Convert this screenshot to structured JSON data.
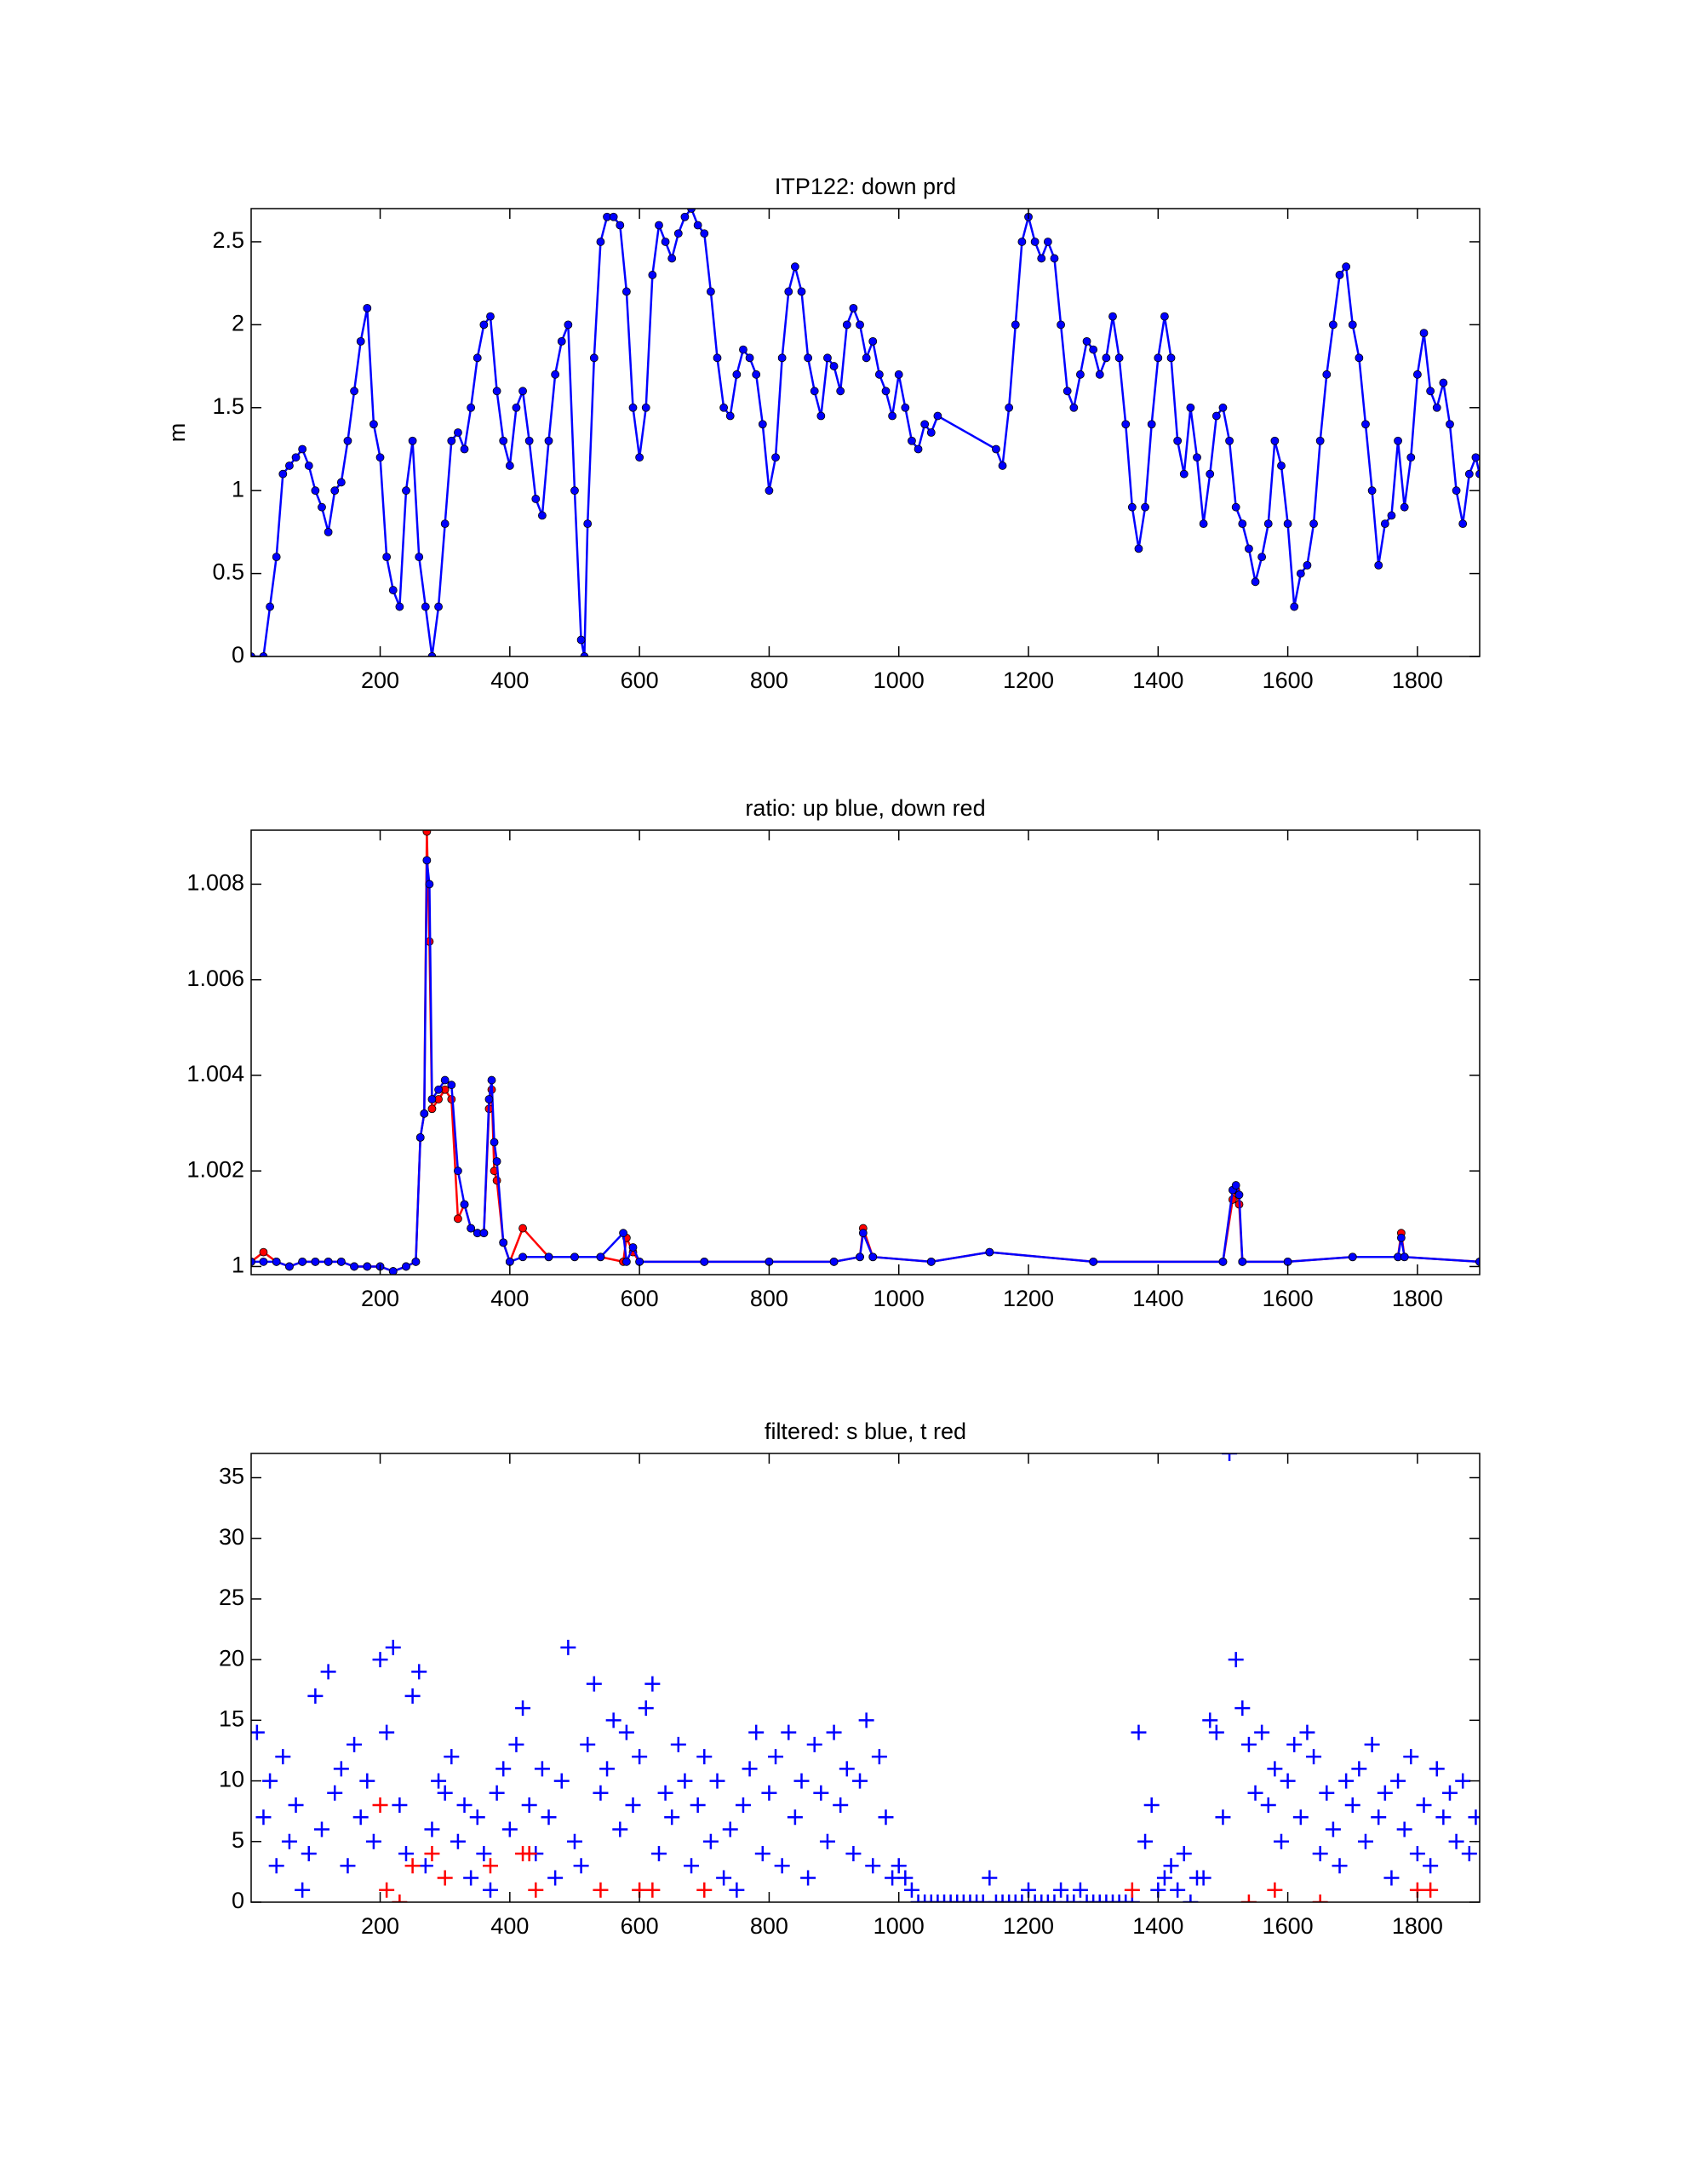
{
  "chart_data": [
    {
      "type": "line",
      "title": "ITP122: down prd",
      "ylabel": "m",
      "xlim": [
        1,
        1896
      ],
      "ylim": [
        0,
        2.7
      ],
      "xticks": [
        200,
        400,
        600,
        800,
        1000,
        1200,
        1400,
        1600,
        1800
      ],
      "yticks": [
        0,
        0.5,
        1,
        1.5,
        2,
        2.5
      ],
      "series": [
        {
          "color": "#0000ff",
          "x": [
            1,
            20,
            30,
            40,
            50,
            60,
            70,
            80,
            90,
            100,
            110,
            120,
            130,
            140,
            150,
            160,
            170,
            180,
            190,
            200,
            210,
            220,
            230,
            240,
            250,
            260,
            270,
            280,
            290,
            300,
            310,
            320,
            330,
            340,
            350,
            360,
            370,
            380,
            390,
            400,
            410,
            420,
            430,
            440,
            450,
            460,
            470,
            480,
            490,
            500,
            510,
            515,
            520,
            530,
            540,
            550,
            560,
            570,
            580,
            590,
            600,
            610,
            620,
            630,
            640,
            650,
            660,
            670,
            680,
            690,
            700,
            710,
            720,
            730,
            740,
            750,
            760,
            770,
            780,
            790,
            800,
            810,
            820,
            830,
            840,
            850,
            860,
            870,
            880,
            890,
            900,
            910,
            920,
            930,
            940,
            950,
            960,
            970,
            980,
            990,
            1000,
            1010,
            1020,
            1030,
            1040,
            1050,
            1060,
            1150,
            1160,
            1170,
            1180,
            1190,
            1200,
            1210,
            1220,
            1230,
            1240,
            1250,
            1260,
            1270,
            1280,
            1290,
            1300,
            1310,
            1320,
            1330,
            1340,
            1350,
            1360,
            1370,
            1380,
            1390,
            1400,
            1410,
            1420,
            1430,
            1440,
            1450,
            1460,
            1470,
            1480,
            1490,
            1500,
            1510,
            1520,
            1530,
            1540,
            1550,
            1560,
            1570,
            1580,
            1590,
            1600,
            1610,
            1620,
            1630,
            1640,
            1650,
            1660,
            1670,
            1680,
            1690,
            1700,
            1710,
            1720,
            1730,
            1740,
            1750,
            1760,
            1770,
            1780,
            1790,
            1800,
            1810,
            1820,
            1830,
            1840,
            1850,
            1860,
            1870,
            1880,
            1890,
            1896
          ],
          "values": [
            0,
            0,
            0.3,
            0.6,
            1.1,
            1.15,
            1.2,
            1.25,
            1.15,
            1.0,
            0.9,
            0.75,
            1.0,
            1.05,
            1.3,
            1.6,
            1.9,
            2.1,
            1.4,
            1.2,
            0.6,
            0.4,
            0.3,
            1.0,
            1.3,
            0.6,
            0.3,
            0.0,
            0.3,
            0.8,
            1.3,
            1.35,
            1.25,
            1.5,
            1.8,
            2.0,
            2.05,
            1.6,
            1.3,
            1.15,
            1.5,
            1.6,
            1.3,
            0.95,
            0.85,
            1.3,
            1.7,
            1.9,
            2.0,
            1.0,
            0.1,
            0.0,
            0.8,
            1.8,
            2.5,
            2.65,
            2.65,
            2.6,
            2.2,
            1.5,
            1.2,
            1.5,
            2.3,
            2.6,
            2.5,
            2.4,
            2.55,
            2.65,
            2.7,
            2.6,
            2.55,
            2.2,
            1.8,
            1.5,
            1.45,
            1.7,
            1.85,
            1.8,
            1.7,
            1.4,
            1.0,
            1.2,
            1.8,
            2.2,
            2.35,
            2.2,
            1.8,
            1.6,
            1.45,
            1.8,
            1.75,
            1.6,
            2.0,
            2.1,
            2.0,
            1.8,
            1.9,
            1.7,
            1.6,
            1.45,
            1.7,
            1.5,
            1.3,
            1.25,
            1.4,
            1.35,
            1.45,
            1.25,
            1.15,
            1.5,
            2.0,
            2.5,
            2.65,
            2.5,
            2.4,
            2.5,
            2.4,
            2.0,
            1.6,
            1.5,
            1.7,
            1.9,
            1.85,
            1.7,
            1.8,
            2.05,
            1.8,
            1.4,
            0.9,
            0.65,
            0.9,
            1.4,
            1.8,
            2.05,
            1.8,
            1.3,
            1.1,
            1.5,
            1.2,
            0.8,
            1.1,
            1.45,
            1.5,
            1.3,
            0.9,
            0.8,
            0.65,
            0.45,
            0.6,
            0.8,
            1.3,
            1.15,
            0.8,
            0.3,
            0.5,
            0.55,
            0.8,
            1.3,
            1.7,
            2.0,
            2.3,
            2.35,
            2.0,
            1.8,
            1.4,
            1.0,
            0.55,
            0.8,
            0.85,
            1.3,
            0.9,
            1.2,
            1.7,
            1.95,
            1.6,
            1.5,
            1.65,
            1.4,
            1.0,
            0.8,
            1.1,
            1.2,
            1.1
          ]
        }
      ]
    },
    {
      "type": "line",
      "title": "ratio: up blue, down red",
      "xlim": [
        1,
        1896
      ],
      "ylim": [
        0.99983,
        1.00913
      ],
      "xticks": [
        200,
        400,
        600,
        800,
        1000,
        1200,
        1400,
        1600,
        1800
      ],
      "yticks": [
        1,
        1.002,
        1.004,
        1.006,
        1.008
      ],
      "x": [
        1,
        20,
        40,
        60,
        80,
        100,
        120,
        140,
        160,
        180,
        200,
        220,
        240,
        255,
        262,
        268,
        272,
        276,
        280,
        290,
        300,
        310,
        320,
        330,
        340,
        350,
        360,
        368,
        372,
        376,
        380,
        390,
        400,
        420,
        460,
        500,
        540,
        575,
        580,
        590,
        600,
        700,
        800,
        900,
        940,
        945,
        960,
        1050,
        1140,
        1300,
        1500,
        1515,
        1520,
        1525,
        1530,
        1600,
        1700,
        1770,
        1775,
        1780,
        1896
      ],
      "series": [
        {
          "color": "#ff0000",
          "values": [
            1.0001,
            1.0003,
            1.0001,
            1.0,
            1.0001,
            1.0001,
            1.0001,
            1.0001,
            1.0,
            1.0,
            1.0,
            0.9999,
            1.0,
            1.0001,
            1.0027,
            1.0032,
            1.0091,
            1.0068,
            1.0033,
            1.0035,
            1.0037,
            1.0035,
            1.001,
            1.0013,
            1.0008,
            1.0007,
            1.0007,
            1.0033,
            1.0037,
            1.002,
            1.0018,
            1.0005,
            1.0001,
            1.0008,
            1.0002,
            1.0002,
            1.0002,
            1.0001,
            1.0006,
            1.0003,
            1.0001,
            1.0001,
            1.0001,
            1.0001,
            1.0002,
            1.0008,
            1.0002,
            1.0001,
            1.0003,
            1.0001,
            1.0001,
            1.0014,
            1.0016,
            1.0013,
            1.0001,
            1.0001,
            1.0002,
            1.0002,
            1.0007,
            1.0002,
            1.0001
          ]
        },
        {
          "color": "#0000ff",
          "values": [
            1.0001,
            1.0001,
            1.0001,
            1.0,
            1.0001,
            1.0001,
            1.0001,
            1.0001,
            1.0,
            1.0,
            1.0,
            0.9999,
            1.0,
            1.0001,
            1.0027,
            1.0032,
            1.0085,
            1.008,
            1.0035,
            1.0037,
            1.0039,
            1.0038,
            1.002,
            1.0013,
            1.0008,
            1.0007,
            1.0007,
            1.0035,
            1.0039,
            1.0026,
            1.0022,
            1.0005,
            1.0001,
            1.0002,
            1.0002,
            1.0002,
            1.0002,
            1.0007,
            1.0001,
            1.0004,
            1.0001,
            1.0001,
            1.0001,
            1.0001,
            1.0002,
            1.0007,
            1.0002,
            1.0001,
            1.0003,
            1.0001,
            1.0001,
            1.0016,
            1.0017,
            1.0015,
            1.0001,
            1.0001,
            1.0002,
            1.0002,
            1.0006,
            1.0002,
            1.0001
          ]
        }
      ]
    },
    {
      "type": "scatter",
      "title": "filtered: s blue, t red",
      "xlim": [
        1,
        1896
      ],
      "ylim": [
        0,
        37
      ],
      "xticks": [
        200,
        400,
        600,
        800,
        1000,
        1200,
        1400,
        1600,
        1800
      ],
      "yticks": [
        0,
        5,
        10,
        15,
        20,
        25,
        30,
        35
      ],
      "series": [
        {
          "color": "#0000ff",
          "x": [
            10,
            20,
            30,
            40,
            50,
            60,
            70,
            80,
            90,
            100,
            110,
            120,
            130,
            140,
            150,
            160,
            170,
            180,
            190,
            200,
            210,
            220,
            230,
            240,
            250,
            260,
            270,
            280,
            290,
            300,
            310,
            320,
            330,
            340,
            350,
            360,
            370,
            380,
            390,
            400,
            410,
            420,
            430,
            440,
            450,
            460,
            470,
            480,
            490,
            500,
            510,
            520,
            530,
            540,
            550,
            560,
            570,
            580,
            590,
            600,
            610,
            620,
            630,
            640,
            650,
            660,
            670,
            680,
            690,
            700,
            710,
            720,
            730,
            740,
            750,
            760,
            770,
            780,
            790,
            800,
            810,
            820,
            830,
            840,
            850,
            860,
            870,
            880,
            890,
            900,
            910,
            920,
            930,
            940,
            950,
            960,
            970,
            980,
            990,
            1000,
            1010,
            1020,
            1030,
            1040,
            1050,
            1060,
            1070,
            1080,
            1090,
            1100,
            1110,
            1120,
            1130,
            1140,
            1150,
            1160,
            1170,
            1180,
            1190,
            1200,
            1210,
            1220,
            1230,
            1240,
            1250,
            1260,
            1270,
            1280,
            1290,
            1300,
            1310,
            1320,
            1330,
            1340,
            1350,
            1360,
            1370,
            1380,
            1390,
            1400,
            1410,
            1420,
            1430,
            1440,
            1450,
            1460,
            1470,
            1480,
            1490,
            1500,
            1510,
            1520,
            1530,
            1540,
            1550,
            1560,
            1570,
            1580,
            1590,
            1600,
            1610,
            1620,
            1630,
            1640,
            1650,
            1660,
            1670,
            1680,
            1690,
            1700,
            1710,
            1720,
            1730,
            1740,
            1750,
            1760,
            1770,
            1780,
            1790,
            1800,
            1810,
            1820,
            1830,
            1840,
            1850,
            1860,
            1870,
            1880,
            1890
          ],
          "values": [
            14,
            7,
            10,
            3,
            12,
            5,
            8,
            1,
            4,
            17,
            6,
            19,
            9,
            11,
            3,
            13,
            7,
            10,
            5,
            20,
            14,
            21,
            8,
            4,
            17,
            19,
            3,
            6,
            10,
            9,
            12,
            5,
            8,
            2,
            7,
            4,
            1,
            9,
            11,
            6,
            13,
            16,
            8,
            4,
            11,
            7,
            2,
            10,
            21,
            5,
            3,
            13,
            18,
            9,
            11,
            15,
            6,
            14,
            8,
            12,
            16,
            18,
            4,
            9,
            7,
            13,
            10,
            3,
            8,
            12,
            5,
            10,
            2,
            6,
            1,
            8,
            11,
            14,
            4,
            9,
            12,
            3,
            14,
            7,
            10,
            2,
            13,
            9,
            5,
            14,
            8,
            11,
            4,
            10,
            15,
            3,
            12,
            7,
            2,
            3,
            2,
            1,
            0,
            0,
            0,
            0,
            0,
            0,
            0,
            0,
            0,
            0,
            0,
            2,
            0,
            0,
            0,
            0,
            0,
            1,
            0,
            0,
            0,
            0,
            1,
            0,
            0,
            1,
            0,
            0,
            0,
            0,
            0,
            0,
            0,
            0,
            14,
            5,
            8,
            1,
            2,
            3,
            1,
            4,
            0,
            2,
            2,
            15,
            14,
            7,
            37,
            20,
            16,
            13,
            9,
            14,
            8,
            11,
            5,
            10,
            13,
            7,
            14,
            12,
            4,
            9,
            6,
            3,
            10,
            8,
            11,
            5,
            13,
            7,
            9,
            2,
            10,
            6,
            12,
            4,
            8,
            3,
            11,
            7,
            9,
            5,
            10,
            4,
            7
          ]
        },
        {
          "color": "#ff0000",
          "x": [
            200,
            210,
            230,
            250,
            280,
            300,
            370,
            420,
            430,
            440,
            540,
            600,
            620,
            700,
            1360,
            1540,
            1580,
            1650,
            1800,
            1820
          ],
          "values": [
            8,
            1,
            0,
            3,
            4,
            2,
            3,
            4,
            4,
            1,
            1,
            1,
            1,
            1,
            1,
            0,
            1,
            0,
            1,
            1
          ]
        }
      ]
    }
  ]
}
